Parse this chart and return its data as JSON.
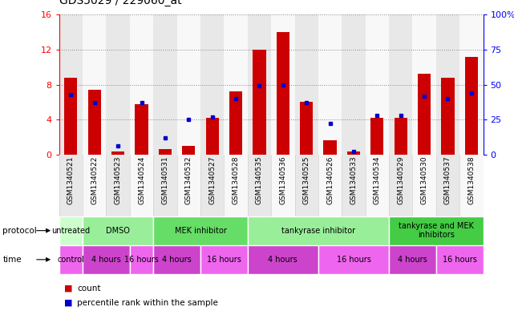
{
  "title": "GDS5029 / 229060_at",
  "samples": [
    "GSM1340521",
    "GSM1340522",
    "GSM1340523",
    "GSM1340524",
    "GSM1340531",
    "GSM1340532",
    "GSM1340527",
    "GSM1340528",
    "GSM1340535",
    "GSM1340536",
    "GSM1340525",
    "GSM1340526",
    "GSM1340533",
    "GSM1340534",
    "GSM1340529",
    "GSM1340530",
    "GSM1340537",
    "GSM1340538"
  ],
  "counts": [
    8.8,
    7.4,
    0.4,
    5.8,
    0.6,
    1.0,
    4.2,
    7.2,
    12.0,
    14.0,
    6.0,
    1.6,
    0.4,
    4.2,
    4.2,
    9.2,
    8.8,
    11.2
  ],
  "percentiles": [
    43,
    37,
    6,
    37,
    12,
    25,
    27,
    40,
    49,
    50,
    37,
    22,
    2,
    28,
    28,
    42,
    40,
    44
  ],
  "ylim_left": [
    0,
    16
  ],
  "ylim_right": [
    0,
    100
  ],
  "yticks_left": [
    0,
    4,
    8,
    12,
    16
  ],
  "yticks_right": [
    0,
    25,
    50,
    75,
    100
  ],
  "bar_color": "#cc0000",
  "dot_color": "#0000cc",
  "protocol_groups": [
    {
      "label": "untreated",
      "start": 0,
      "end": 2,
      "color": "#ccffcc"
    },
    {
      "label": "DMSO",
      "start": 2,
      "end": 8,
      "color": "#99ee99"
    },
    {
      "label": "MEK inhibitor",
      "start": 8,
      "end": 16,
      "color": "#66dd66"
    },
    {
      "label": "tankyrase inhibitor",
      "start": 16,
      "end": 28,
      "color": "#99ee99"
    },
    {
      "label": "tankyrase and MEK\ninhibitors",
      "start": 28,
      "end": 36,
      "color": "#44cc44"
    }
  ],
  "time_groups": [
    {
      "label": "control",
      "start": 0,
      "end": 2,
      "color": "#ee66ee"
    },
    {
      "label": "4 hours",
      "start": 2,
      "end": 6,
      "color": "#cc44cc"
    },
    {
      "label": "16 hours",
      "start": 6,
      "end": 8,
      "color": "#ee66ee"
    },
    {
      "label": "4 hours",
      "start": 8,
      "end": 12,
      "color": "#cc44cc"
    },
    {
      "label": "16 hours",
      "start": 12,
      "end": 16,
      "color": "#ee66ee"
    },
    {
      "label": "4 hours",
      "start": 16,
      "end": 22,
      "color": "#cc44cc"
    },
    {
      "label": "16 hours",
      "start": 22,
      "end": 28,
      "color": "#ee66ee"
    },
    {
      "label": "4 hours",
      "start": 28,
      "end": 32,
      "color": "#cc44cc"
    },
    {
      "label": "16 hours",
      "start": 32,
      "end": 36,
      "color": "#ee66ee"
    }
  ],
  "background_color": "#ffffff",
  "grid_color": "#888888",
  "chart_bg": "#ffffff",
  "col_bg_odd": "#e8e8e8",
  "col_bg_even": "#f8f8f8"
}
